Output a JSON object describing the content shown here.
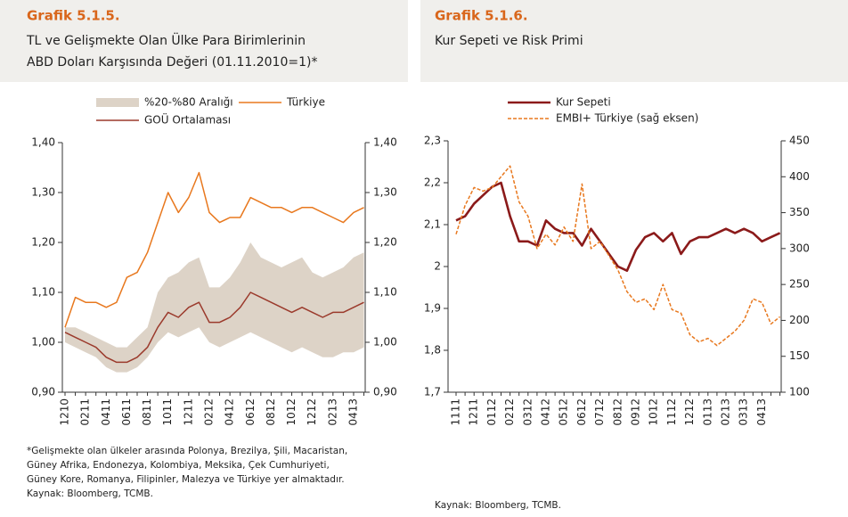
{
  "chart_data": [
    {
      "type": "line",
      "title": "Grafik 5.1.5.",
      "subtitle": [
        "TL ve Gelişmekte Olan Ülke Para Birimlerinin",
        "ABD Doları Karşısında Değeri  (01.11.2010=1)*"
      ],
      "categories": [
        "1210",
        null,
        "0211",
        null,
        "0411",
        null,
        "0611",
        null,
        "0811",
        null,
        "1011",
        null,
        "1211",
        null,
        "0212",
        null,
        "0412",
        null,
        "0612",
        null,
        "0812",
        null,
        "1012",
        null,
        "1212",
        null,
        "0213",
        null,
        "0413",
        null
      ],
      "ylim": [
        0.9,
        1.4
      ],
      "yticks": [
        {
          "value": 0.9,
          "label": "0,90"
        },
        {
          "value": 1.0,
          "label": "1,00"
        },
        {
          "value": 1.1,
          "label": "1,10"
        },
        {
          "value": 1.2,
          "label": "1,20"
        },
        {
          "value": 1.3,
          "label": "1,30"
        },
        {
          "value": 1.4,
          "label": "1,40"
        }
      ],
      "y2lim": [
        0.9,
        1.4
      ],
      "y2ticks": [
        {
          "value": 0.9,
          "label": "0,90"
        },
        {
          "value": 1.0,
          "label": "1,00"
        },
        {
          "value": 1.1,
          "label": "1,10"
        },
        {
          "value": 1.2,
          "label": "1,20"
        },
        {
          "value": 1.3,
          "label": "1,30"
        },
        {
          "value": 1.4,
          "label": "1,40"
        }
      ],
      "series": [
        {
          "name": "%20-%80 Aralığı",
          "color": "#ddd3c7",
          "lower": [
            1.0,
            0.99,
            0.98,
            0.97,
            0.95,
            0.94,
            0.94,
            0.95,
            0.97,
            1.0,
            1.02,
            1.01,
            1.02,
            1.03,
            1.0,
            0.99,
            1.0,
            1.01,
            1.02,
            1.01,
            1.0,
            0.99,
            0.98,
            0.99,
            0.98,
            0.97,
            0.97,
            0.98,
            0.98,
            0.99
          ],
          "upper": [
            1.03,
            1.03,
            1.02,
            1.01,
            1.0,
            0.99,
            0.99,
            1.01,
            1.03,
            1.1,
            1.13,
            1.14,
            1.16,
            1.17,
            1.11,
            1.11,
            1.13,
            1.16,
            1.2,
            1.17,
            1.16,
            1.15,
            1.16,
            1.17,
            1.14,
            1.13,
            1.14,
            1.15,
            1.17,
            1.18
          ]
        },
        {
          "name": "Türkiye",
          "color": "#e8781e",
          "values": [
            1.03,
            1.09,
            1.08,
            1.08,
            1.07,
            1.08,
            1.13,
            1.14,
            1.18,
            1.24,
            1.3,
            1.26,
            1.29,
            1.34,
            1.26,
            1.24,
            1.25,
            1.25,
            1.29,
            1.28,
            1.27,
            1.27,
            1.26,
            1.27,
            1.27,
            1.26,
            1.25,
            1.24,
            1.26,
            1.27
          ]
        },
        {
          "name": "GOÜ Ortalaması",
          "color": "#9b3a2c",
          "values": [
            1.02,
            1.01,
            1.0,
            0.99,
            0.97,
            0.96,
            0.96,
            0.97,
            0.99,
            1.03,
            1.06,
            1.05,
            1.07,
            1.08,
            1.04,
            1.04,
            1.05,
            1.07,
            1.1,
            1.09,
            1.08,
            1.07,
            1.06,
            1.07,
            1.06,
            1.05,
            1.06,
            1.06,
            1.07,
            1.08
          ]
        }
      ],
      "note": [
        "*Gelişmekte olan ülkeler arasında Polonya, Brezilya, Şili, Macaristan,",
        "Güney Afrika, Endonezya, Kolombiya, Meksika, Çek Cumhuriyeti,",
        "Güney Kore, Romanya, Filipinler, Malezya ve Türkiye yer almaktadır."
      ],
      "source": "Kaynak: Bloomberg, TCMB."
    },
    {
      "type": "line",
      "title": "Grafik 5.1.6.",
      "subtitle": [
        "Kur Sepeti ve Risk Primi"
      ],
      "categories": [
        "1111",
        null,
        "1211",
        null,
        "0112",
        null,
        "0212",
        null,
        "0312",
        null,
        "0412",
        null,
        "0512",
        null,
        "0612",
        null,
        "0712",
        null,
        "0812",
        null,
        "0912",
        null,
        "1012",
        null,
        "1112",
        null,
        "1212",
        null,
        "0113",
        null,
        "0213",
        null,
        "0313",
        null,
        "0413",
        null,
        null
      ],
      "ylim": [
        1.7,
        2.3
      ],
      "yticks": [
        {
          "value": 1.7,
          "label": "1,7"
        },
        {
          "value": 1.8,
          "label": "1,8"
        },
        {
          "value": 1.9,
          "label": "1,9"
        },
        2,
        {
          "value": 2.1,
          "label": "2,1"
        },
        {
          "value": 2.2,
          "label": "2,2"
        },
        {
          "value": 2.3,
          "label": "2,3"
        }
      ],
      "y2lim": [
        100,
        450
      ],
      "y2ticks": [
        100,
        150,
        200,
        250,
        300,
        350,
        400,
        450
      ],
      "series": [
        {
          "name": "Kur Sepeti",
          "color": "#8b1a1a",
          "line_width": 2.6,
          "values": [
            2.11,
            2.12,
            2.15,
            2.17,
            2.19,
            2.2,
            2.12,
            2.06,
            2.06,
            2.05,
            2.11,
            2.09,
            2.08,
            2.08,
            2.05,
            2.09,
            2.06,
            2.03,
            2.0,
            1.99,
            2.04,
            2.07,
            2.08,
            2.06,
            2.08,
            2.03,
            2.06,
            2.07,
            2.07,
            2.08,
            2.09,
            2.08,
            2.09,
            2.08,
            2.06,
            2.07,
            2.08
          ]
        },
        {
          "name": "EMBI+ Türkiye (sağ eksen)",
          "color": "#e8781e",
          "axis": "y2",
          "dashed": true,
          "values": [
            320,
            360,
            385,
            380,
            385,
            400,
            415,
            365,
            345,
            300,
            320,
            305,
            330,
            310,
            390,
            300,
            310,
            290,
            270,
            240,
            225,
            230,
            215,
            250,
            215,
            210,
            180,
            170,
            175,
            165,
            175,
            185,
            200,
            230,
            225,
            195,
            205
          ]
        }
      ],
      "source": "Kaynak: Bloomberg, TCMB."
    }
  ]
}
